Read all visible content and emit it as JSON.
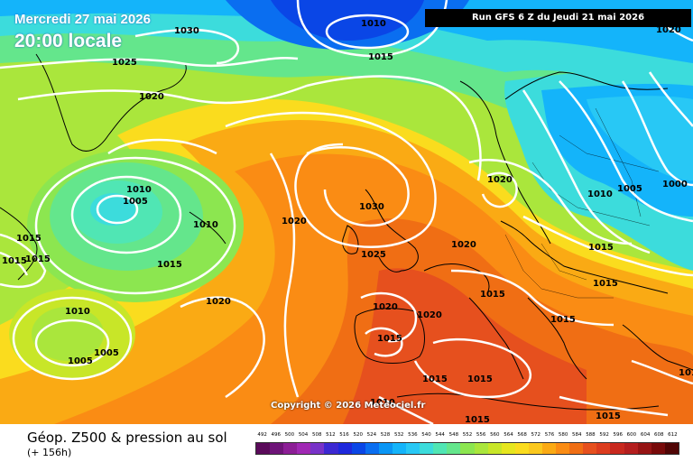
{
  "header": {
    "date": "Mercredi 27 mai 2026",
    "local_time": "20:00 locale",
    "run_info": "Run GFS 6 Z du Jeudi 21 mai 2026"
  },
  "footer": {
    "product": "Géop. Z500 & pression au sol",
    "lead_time": "(+ 156h)",
    "copyright": "Copyright © 2026 Meteociel.fr"
  },
  "scale": {
    "labels": [
      "492",
      "496",
      "500",
      "504",
      "508",
      "512",
      "516",
      "520",
      "524",
      "528",
      "532",
      "536",
      "540",
      "544",
      "548",
      "552",
      "556",
      "560",
      "564",
      "568",
      "572",
      "576",
      "580",
      "584",
      "588",
      "592",
      "596",
      "600",
      "604",
      "608",
      "612"
    ],
    "colors": [
      "#5a0a5a",
      "#6e1478",
      "#8c1e96",
      "#a028b4",
      "#7832c8",
      "#3c28d2",
      "#1e28dc",
      "#0a46e6",
      "#0a6ef0",
      "#0a96f5",
      "#14b4fa",
      "#28c8f5",
      "#3cdcdc",
      "#50e6b4",
      "#64e68c",
      "#8ce650",
      "#aae63c",
      "#c8e628",
      "#e6e61e",
      "#fadc1e",
      "#fac81e",
      "#faaa14",
      "#fa8c14",
      "#f06e14",
      "#e6501e",
      "#dc3c1e",
      "#c8281e",
      "#b41e1e",
      "#961414",
      "#780a0a",
      "#500505"
    ]
  },
  "isobars": [
    {
      "value": "1030"
    },
    {
      "value": "1010"
    },
    {
      "value": "1015"
    },
    {
      "value": "1025"
    },
    {
      "value": "1020"
    },
    {
      "value": "1020"
    },
    {
      "value": "1010"
    },
    {
      "value": "1005"
    },
    {
      "value": "1010"
    },
    {
      "value": "1015"
    },
    {
      "value": "1015"
    },
    {
      "value": "1015"
    },
    {
      "value": "1015"
    },
    {
      "value": "1020"
    },
    {
      "value": "1010"
    },
    {
      "value": "1005"
    },
    {
      "value": "1005"
    },
    {
      "value": "1020"
    },
    {
      "value": "1030"
    },
    {
      "value": "1025"
    },
    {
      "value": "1020"
    },
    {
      "value": "1020"
    },
    {
      "value": "1020"
    },
    {
      "value": "1015"
    },
    {
      "value": "1015"
    },
    {
      "value": "1015"
    },
    {
      "value": "1015"
    },
    {
      "value": "1015"
    },
    {
      "value": "1010"
    },
    {
      "value": "1005"
    },
    {
      "value": "1000"
    },
    {
      "value": "1015"
    },
    {
      "value": "1015"
    },
    {
      "value": "1015"
    },
    {
      "value": "1010"
    },
    {
      "value": "1015"
    },
    {
      "value": "1010"
    },
    {
      "value": "1020"
    }
  ]
}
